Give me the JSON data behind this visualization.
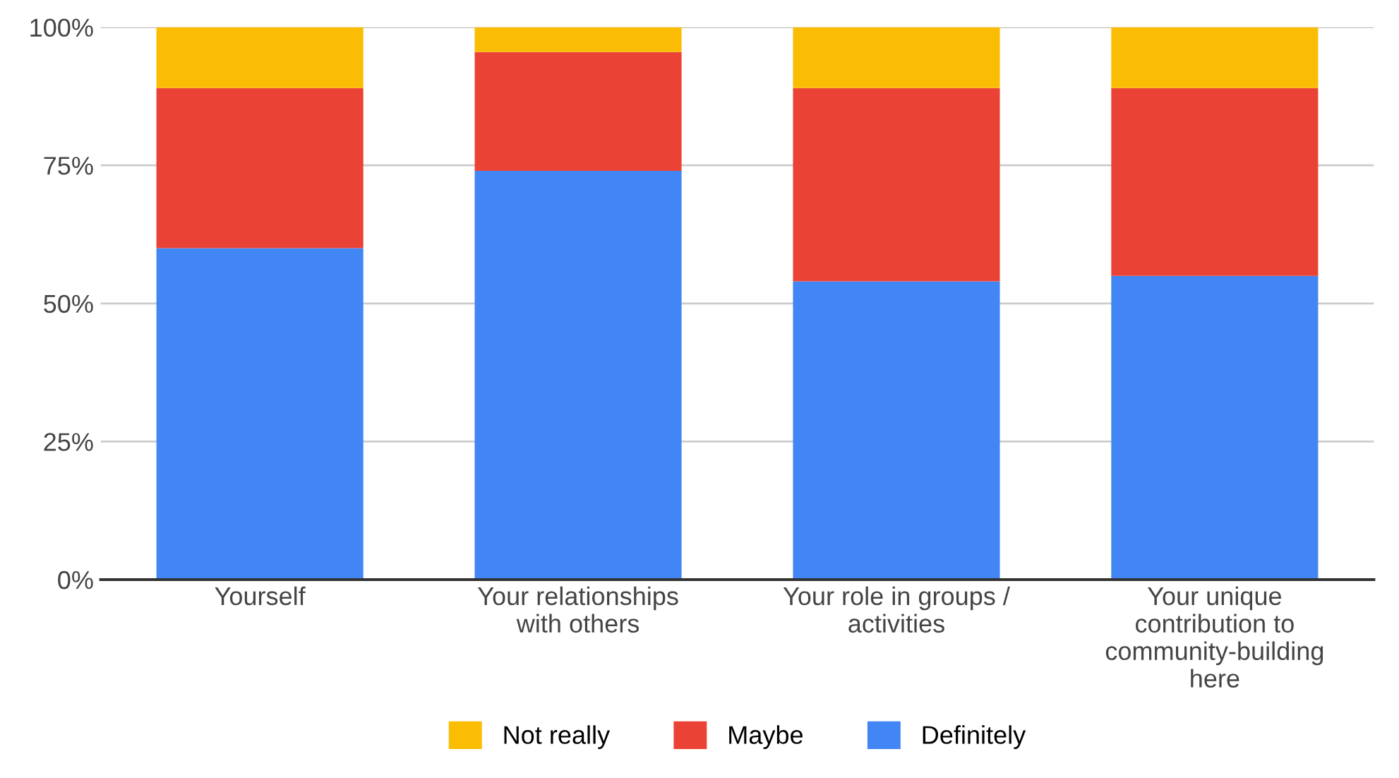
{
  "chart_data": {
    "type": "bar",
    "stacked": true,
    "categories": [
      "Yourself",
      "Your relationships\nwith others",
      "Your role in groups /\nactivities",
      "Your unique\ncontribution to\ncommunity-building\nhere"
    ],
    "series": [
      {
        "name": "Definitely",
        "color": "#4285f4",
        "values": [
          60,
          74,
          54,
          55
        ]
      },
      {
        "name": "Maybe",
        "color": "#ea4335",
        "values": [
          29,
          21.5,
          35,
          34
        ]
      },
      {
        "name": "Not really",
        "color": "#fbbc04",
        "values": [
          11,
          4.5,
          11,
          11
        ]
      }
    ],
    "ylim": [
      0,
      100
    ],
    "yticks": [
      {
        "value": 0,
        "label": "0%"
      },
      {
        "value": 25,
        "label": "25%"
      },
      {
        "value": 50,
        "label": "50%"
      },
      {
        "value": 75,
        "label": "75%"
      },
      {
        "value": 100,
        "label": "100%"
      }
    ],
    "grid": "y",
    "legend": "bottom"
  }
}
